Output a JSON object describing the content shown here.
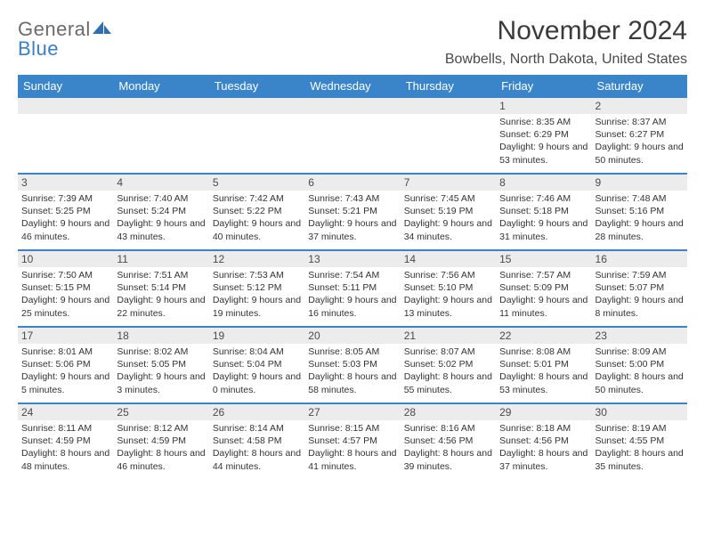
{
  "brand": {
    "word1": "General",
    "word2": "Blue"
  },
  "title": "November 2024",
  "location": "Bowbells, North Dakota, United States",
  "colors": {
    "header_bg": "#3a85c9",
    "header_text": "#ffffff",
    "row_border": "#3a85c9",
    "daynum_bg": "#ececec",
    "body_text": "#333333",
    "logo_gray": "#6b6b6b",
    "logo_blue": "#3a7fc4"
  },
  "weekday_labels": [
    "Sunday",
    "Monday",
    "Tuesday",
    "Wednesday",
    "Thursday",
    "Friday",
    "Saturday"
  ],
  "weeks": [
    [
      {
        "day": "",
        "sunrise": "",
        "sunset": "",
        "daylight": ""
      },
      {
        "day": "",
        "sunrise": "",
        "sunset": "",
        "daylight": ""
      },
      {
        "day": "",
        "sunrise": "",
        "sunset": "",
        "daylight": ""
      },
      {
        "day": "",
        "sunrise": "",
        "sunset": "",
        "daylight": ""
      },
      {
        "day": "",
        "sunrise": "",
        "sunset": "",
        "daylight": ""
      },
      {
        "day": "1",
        "sunrise": "Sunrise: 8:35 AM",
        "sunset": "Sunset: 6:29 PM",
        "daylight": "Daylight: 9 hours and 53 minutes."
      },
      {
        "day": "2",
        "sunrise": "Sunrise: 8:37 AM",
        "sunset": "Sunset: 6:27 PM",
        "daylight": "Daylight: 9 hours and 50 minutes."
      }
    ],
    [
      {
        "day": "3",
        "sunrise": "Sunrise: 7:39 AM",
        "sunset": "Sunset: 5:25 PM",
        "daylight": "Daylight: 9 hours and 46 minutes."
      },
      {
        "day": "4",
        "sunrise": "Sunrise: 7:40 AM",
        "sunset": "Sunset: 5:24 PM",
        "daylight": "Daylight: 9 hours and 43 minutes."
      },
      {
        "day": "5",
        "sunrise": "Sunrise: 7:42 AM",
        "sunset": "Sunset: 5:22 PM",
        "daylight": "Daylight: 9 hours and 40 minutes."
      },
      {
        "day": "6",
        "sunrise": "Sunrise: 7:43 AM",
        "sunset": "Sunset: 5:21 PM",
        "daylight": "Daylight: 9 hours and 37 minutes."
      },
      {
        "day": "7",
        "sunrise": "Sunrise: 7:45 AM",
        "sunset": "Sunset: 5:19 PM",
        "daylight": "Daylight: 9 hours and 34 minutes."
      },
      {
        "day": "8",
        "sunrise": "Sunrise: 7:46 AM",
        "sunset": "Sunset: 5:18 PM",
        "daylight": "Daylight: 9 hours and 31 minutes."
      },
      {
        "day": "9",
        "sunrise": "Sunrise: 7:48 AM",
        "sunset": "Sunset: 5:16 PM",
        "daylight": "Daylight: 9 hours and 28 minutes."
      }
    ],
    [
      {
        "day": "10",
        "sunrise": "Sunrise: 7:50 AM",
        "sunset": "Sunset: 5:15 PM",
        "daylight": "Daylight: 9 hours and 25 minutes."
      },
      {
        "day": "11",
        "sunrise": "Sunrise: 7:51 AM",
        "sunset": "Sunset: 5:14 PM",
        "daylight": "Daylight: 9 hours and 22 minutes."
      },
      {
        "day": "12",
        "sunrise": "Sunrise: 7:53 AM",
        "sunset": "Sunset: 5:12 PM",
        "daylight": "Daylight: 9 hours and 19 minutes."
      },
      {
        "day": "13",
        "sunrise": "Sunrise: 7:54 AM",
        "sunset": "Sunset: 5:11 PM",
        "daylight": "Daylight: 9 hours and 16 minutes."
      },
      {
        "day": "14",
        "sunrise": "Sunrise: 7:56 AM",
        "sunset": "Sunset: 5:10 PM",
        "daylight": "Daylight: 9 hours and 13 minutes."
      },
      {
        "day": "15",
        "sunrise": "Sunrise: 7:57 AM",
        "sunset": "Sunset: 5:09 PM",
        "daylight": "Daylight: 9 hours and 11 minutes."
      },
      {
        "day": "16",
        "sunrise": "Sunrise: 7:59 AM",
        "sunset": "Sunset: 5:07 PM",
        "daylight": "Daylight: 9 hours and 8 minutes."
      }
    ],
    [
      {
        "day": "17",
        "sunrise": "Sunrise: 8:01 AM",
        "sunset": "Sunset: 5:06 PM",
        "daylight": "Daylight: 9 hours and 5 minutes."
      },
      {
        "day": "18",
        "sunrise": "Sunrise: 8:02 AM",
        "sunset": "Sunset: 5:05 PM",
        "daylight": "Daylight: 9 hours and 3 minutes."
      },
      {
        "day": "19",
        "sunrise": "Sunrise: 8:04 AM",
        "sunset": "Sunset: 5:04 PM",
        "daylight": "Daylight: 9 hours and 0 minutes."
      },
      {
        "day": "20",
        "sunrise": "Sunrise: 8:05 AM",
        "sunset": "Sunset: 5:03 PM",
        "daylight": "Daylight: 8 hours and 58 minutes."
      },
      {
        "day": "21",
        "sunrise": "Sunrise: 8:07 AM",
        "sunset": "Sunset: 5:02 PM",
        "daylight": "Daylight: 8 hours and 55 minutes."
      },
      {
        "day": "22",
        "sunrise": "Sunrise: 8:08 AM",
        "sunset": "Sunset: 5:01 PM",
        "daylight": "Daylight: 8 hours and 53 minutes."
      },
      {
        "day": "23",
        "sunrise": "Sunrise: 8:09 AM",
        "sunset": "Sunset: 5:00 PM",
        "daylight": "Daylight: 8 hours and 50 minutes."
      }
    ],
    [
      {
        "day": "24",
        "sunrise": "Sunrise: 8:11 AM",
        "sunset": "Sunset: 4:59 PM",
        "daylight": "Daylight: 8 hours and 48 minutes."
      },
      {
        "day": "25",
        "sunrise": "Sunrise: 8:12 AM",
        "sunset": "Sunset: 4:59 PM",
        "daylight": "Daylight: 8 hours and 46 minutes."
      },
      {
        "day": "26",
        "sunrise": "Sunrise: 8:14 AM",
        "sunset": "Sunset: 4:58 PM",
        "daylight": "Daylight: 8 hours and 44 minutes."
      },
      {
        "day": "27",
        "sunrise": "Sunrise: 8:15 AM",
        "sunset": "Sunset: 4:57 PM",
        "daylight": "Daylight: 8 hours and 41 minutes."
      },
      {
        "day": "28",
        "sunrise": "Sunrise: 8:16 AM",
        "sunset": "Sunset: 4:56 PM",
        "daylight": "Daylight: 8 hours and 39 minutes."
      },
      {
        "day": "29",
        "sunrise": "Sunrise: 8:18 AM",
        "sunset": "Sunset: 4:56 PM",
        "daylight": "Daylight: 8 hours and 37 minutes."
      },
      {
        "day": "30",
        "sunrise": "Sunrise: 8:19 AM",
        "sunset": "Sunset: 4:55 PM",
        "daylight": "Daylight: 8 hours and 35 minutes."
      }
    ]
  ]
}
